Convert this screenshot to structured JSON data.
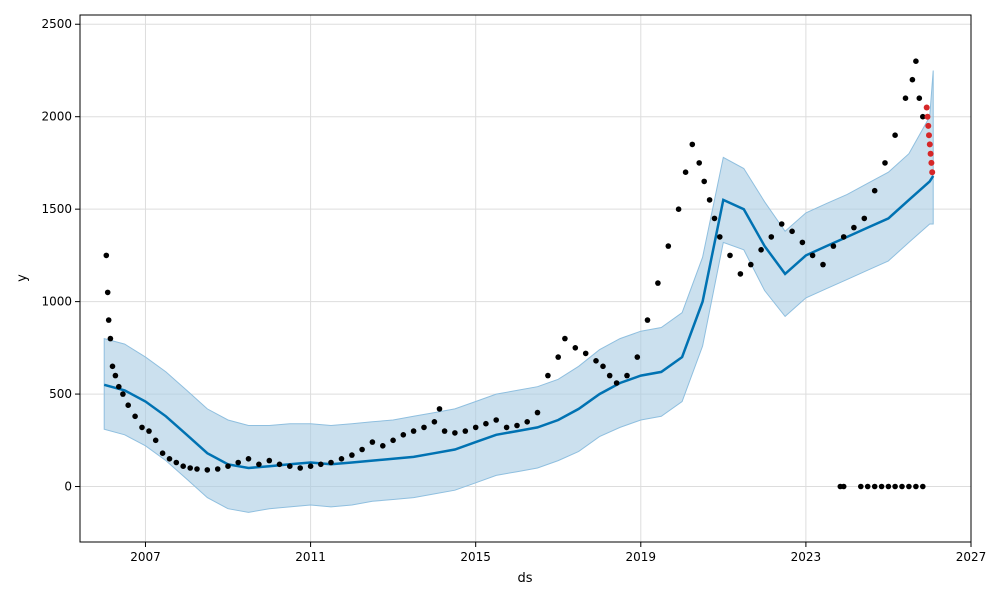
{
  "chart_data": {
    "type": "scatter",
    "title": "",
    "xlabel": "ds",
    "ylabel": "y",
    "x_ticks": [
      "2007",
      "2011",
      "2015",
      "2019",
      "2023",
      "2027"
    ],
    "y_ticks": [
      0,
      500,
      1000,
      1500,
      2000,
      2500
    ],
    "xlim": [
      "2005-06-01",
      "2027-01-01"
    ],
    "ylim": [
      -300,
      2550
    ],
    "grid": true,
    "legend": "none",
    "colors": {
      "observed": "#000000",
      "forecast_line": "#0072B2",
      "uncertainty_band": "#A9CCE3",
      "band_edge": "#8FBFDF",
      "future_points": "#D62728",
      "grid": "#DDDDDD"
    },
    "series": [
      {
        "kind": "observed-points",
        "x": [
          "2006-01-20",
          "2006-02-01",
          "2006-02-10",
          "2006-02-25",
          "2006-03-15",
          "2006-04-10",
          "2006-05-10",
          "2006-06-15",
          "2006-08-01",
          "2006-10-01",
          "2006-12-01",
          "2007-02-01",
          "2007-04-01",
          "2007-06-01",
          "2007-08-01",
          "2007-10-01",
          "2007-12-01",
          "2008-02-01",
          "2008-04-01",
          "2008-07-01",
          "2008-10-01",
          "2009-01-01",
          "2009-04-01",
          "2009-07-01",
          "2009-10-01",
          "2010-01-01",
          "2010-04-01",
          "2010-07-01",
          "2010-10-01",
          "2011-01-01",
          "2011-04-01",
          "2011-07-01",
          "2011-10-01",
          "2012-01-01",
          "2012-04-01",
          "2012-07-01",
          "2012-10-01",
          "2013-01-01",
          "2013-04-01",
          "2013-07-01",
          "2013-10-01",
          "2014-01-01",
          "2014-02-15",
          "2014-04-01",
          "2014-07-01",
          "2014-10-01",
          "2015-01-01",
          "2015-04-01",
          "2015-07-01",
          "2015-10-01",
          "2016-01-01",
          "2016-04-01",
          "2016-07-01",
          "2016-10-01",
          "2017-01-01",
          "2017-03-01",
          "2017-06-01",
          "2017-09-01",
          "2017-12-01",
          "2018-02-01",
          "2018-04-01",
          "2018-06-01",
          "2018-09-01",
          "2018-12-01",
          "2019-03-01",
          "2019-06-01",
          "2019-09-01",
          "2019-12-01",
          "2020-02-01",
          "2020-04-01",
          "2020-06-01",
          "2020-07-15",
          "2020-09-01",
          "2020-10-15",
          "2020-12-01",
          "2021-03-01",
          "2021-06-01",
          "2021-09-01",
          "2021-12-01",
          "2022-03-01",
          "2022-06-01",
          "2022-09-01",
          "2022-12-01",
          "2023-03-01",
          "2023-06-01",
          "2023-09-01",
          "2023-12-01",
          "2024-03-01",
          "2024-06-01",
          "2024-09-01",
          "2024-12-01",
          "2025-03-01",
          "2025-06-01",
          "2025-08-01",
          "2025-09-01",
          "2025-10-01",
          "2025-11-01",
          "2023-11-01",
          "2023-12-01",
          "2024-05-01",
          "2024-07-01",
          "2024-09-01",
          "2024-11-01",
          "2025-01-01",
          "2025-03-01",
          "2025-05-01",
          "2025-07-01",
          "2025-09-01",
          "2025-11-01"
        ],
        "y": [
          1250,
          1050,
          900,
          800,
          650,
          600,
          540,
          500,
          440,
          380,
          320,
          300,
          250,
          180,
          150,
          130,
          110,
          100,
          95,
          90,
          95,
          110,
          130,
          150,
          120,
          140,
          120,
          110,
          100,
          110,
          120,
          130,
          150,
          170,
          200,
          240,
          220,
          250,
          280,
          300,
          320,
          350,
          420,
          300,
          290,
          300,
          320,
          340,
          360,
          320,
          330,
          350,
          400,
          600,
          700,
          800,
          750,
          720,
          680,
          650,
          600,
          560,
          600,
          700,
          900,
          1100,
          1300,
          1500,
          1700,
          1850,
          1750,
          1650,
          1550,
          1450,
          1350,
          1250,
          1150,
          1200,
          1280,
          1350,
          1420,
          1380,
          1320,
          1250,
          1200,
          1300,
          1350,
          1400,
          1450,
          1600,
          1750,
          1900,
          2100,
          2200,
          2300,
          2100,
          2000,
          0,
          0,
          0,
          0,
          0,
          0,
          0,
          0,
          0,
          0,
          0,
          0
        ]
      },
      {
        "kind": "future-points",
        "x": [
          "2025-12-05",
          "2025-12-12",
          "2025-12-19",
          "2025-12-26",
          "2026-01-02",
          "2026-01-09",
          "2026-01-16",
          "2026-01-23"
        ],
        "y": [
          2050,
          2000,
          1950,
          1900,
          1850,
          1800,
          1750,
          1700
        ]
      },
      {
        "kind": "trend-line",
        "x": [
          "2006-01-01",
          "2006-07-01",
          "2007-01-01",
          "2007-07-01",
          "2008-01-01",
          "2008-07-01",
          "2009-01-01",
          "2009-07-01",
          "2010-01-01",
          "2010-07-01",
          "2011-01-01",
          "2011-07-01",
          "2012-01-01",
          "2012-07-01",
          "2013-01-01",
          "2013-07-01",
          "2014-01-01",
          "2014-07-01",
          "2015-01-01",
          "2015-07-01",
          "2016-01-01",
          "2016-07-01",
          "2017-01-01",
          "2017-07-01",
          "2018-01-01",
          "2018-07-01",
          "2019-01-01",
          "2019-07-01",
          "2020-01-01",
          "2020-07-01",
          "2021-01-01",
          "2021-07-01",
          "2022-01-01",
          "2022-07-01",
          "2023-01-01",
          "2023-07-01",
          "2024-01-01",
          "2024-07-01",
          "2025-01-01",
          "2025-07-01",
          "2026-01-01",
          "2026-02-01"
        ],
        "y": [
          550,
          520,
          460,
          380,
          280,
          180,
          120,
          100,
          110,
          120,
          130,
          120,
          130,
          140,
          150,
          160,
          180,
          200,
          240,
          280,
          300,
          320,
          360,
          420,
          500,
          560,
          600,
          620,
          700,
          1000,
          1550,
          1500,
          1300,
          1150,
          1250,
          1300,
          1350,
          1400,
          1450,
          1550,
          1650,
          1680
        ]
      },
      {
        "kind": "uncertainty-band",
        "x": [
          "2006-01-01",
          "2006-07-01",
          "2007-01-01",
          "2007-07-01",
          "2008-01-01",
          "2008-07-01",
          "2009-01-01",
          "2009-07-01",
          "2010-01-01",
          "2010-07-01",
          "2011-01-01",
          "2011-07-01",
          "2012-01-01",
          "2012-07-01",
          "2013-01-01",
          "2013-07-01",
          "2014-01-01",
          "2014-07-01",
          "2015-01-01",
          "2015-07-01",
          "2016-01-01",
          "2016-07-01",
          "2017-01-01",
          "2017-07-01",
          "2018-01-01",
          "2018-07-01",
          "2019-01-01",
          "2019-07-01",
          "2020-01-01",
          "2020-07-01",
          "2021-01-01",
          "2021-07-01",
          "2022-01-01",
          "2022-07-01",
          "2023-01-01",
          "2023-07-01",
          "2024-01-01",
          "2024-07-01",
          "2025-01-01",
          "2025-07-01",
          "2026-01-01",
          "2026-02-01"
        ],
        "upper": [
          800,
          770,
          700,
          620,
          520,
          420,
          360,
          330,
          330,
          340,
          340,
          330,
          340,
          350,
          360,
          380,
          400,
          420,
          460,
          500,
          520,
          540,
          580,
          650,
          740,
          800,
          840,
          860,
          940,
          1240,
          1780,
          1720,
          1540,
          1380,
          1480,
          1530,
          1580,
          1640,
          1700,
          1800,
          2000,
          2250
        ],
        "lower": [
          310,
          280,
          220,
          140,
          40,
          -60,
          -120,
          -140,
          -120,
          -110,
          -100,
          -110,
          -100,
          -80,
          -70,
          -60,
          -40,
          -20,
          20,
          60,
          80,
          100,
          140,
          190,
          270,
          320,
          360,
          380,
          460,
          760,
          1320,
          1280,
          1060,
          920,
          1020,
          1070,
          1120,
          1170,
          1220,
          1320,
          1420,
          1420
        ]
      }
    ]
  }
}
